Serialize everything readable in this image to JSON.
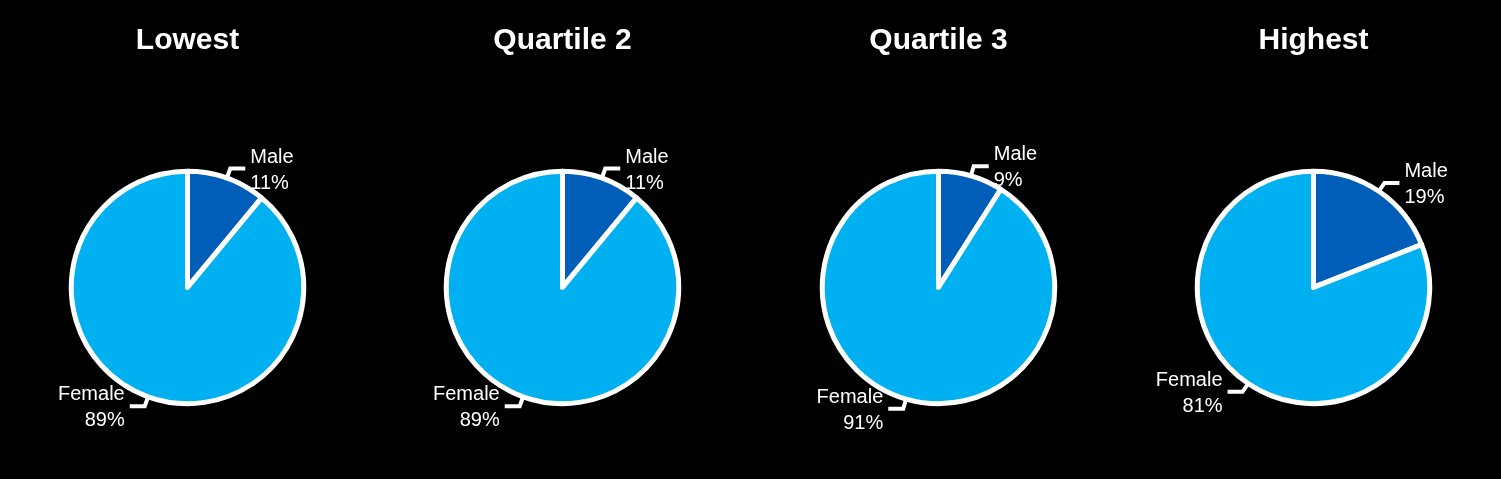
{
  "chart_data": [
    {
      "type": "pie",
      "title": "Lowest",
      "categories": [
        "Male",
        "Female"
      ],
      "values": [
        11,
        89
      ],
      "colors": [
        "#005eb8",
        "#00b0f0"
      ],
      "value_labels": [
        "11%",
        "89%"
      ]
    },
    {
      "type": "pie",
      "title": "Quartile 2",
      "categories": [
        "Male",
        "Female"
      ],
      "values": [
        11,
        89
      ],
      "colors": [
        "#005eb8",
        "#00b0f0"
      ],
      "value_labels": [
        "11%",
        "89%"
      ]
    },
    {
      "type": "pie",
      "title": "Quartile 3",
      "categories": [
        "Male",
        "Female"
      ],
      "values": [
        9,
        91
      ],
      "colors": [
        "#005eb8",
        "#00b0f0"
      ],
      "value_labels": [
        "9%",
        "91%"
      ]
    },
    {
      "type": "pie",
      "title": "Highest",
      "categories": [
        "Male",
        "Female"
      ],
      "values": [
        19,
        81
      ],
      "colors": [
        "#005eb8",
        "#00b0f0"
      ],
      "value_labels": [
        "19%",
        "81%"
      ]
    }
  ]
}
